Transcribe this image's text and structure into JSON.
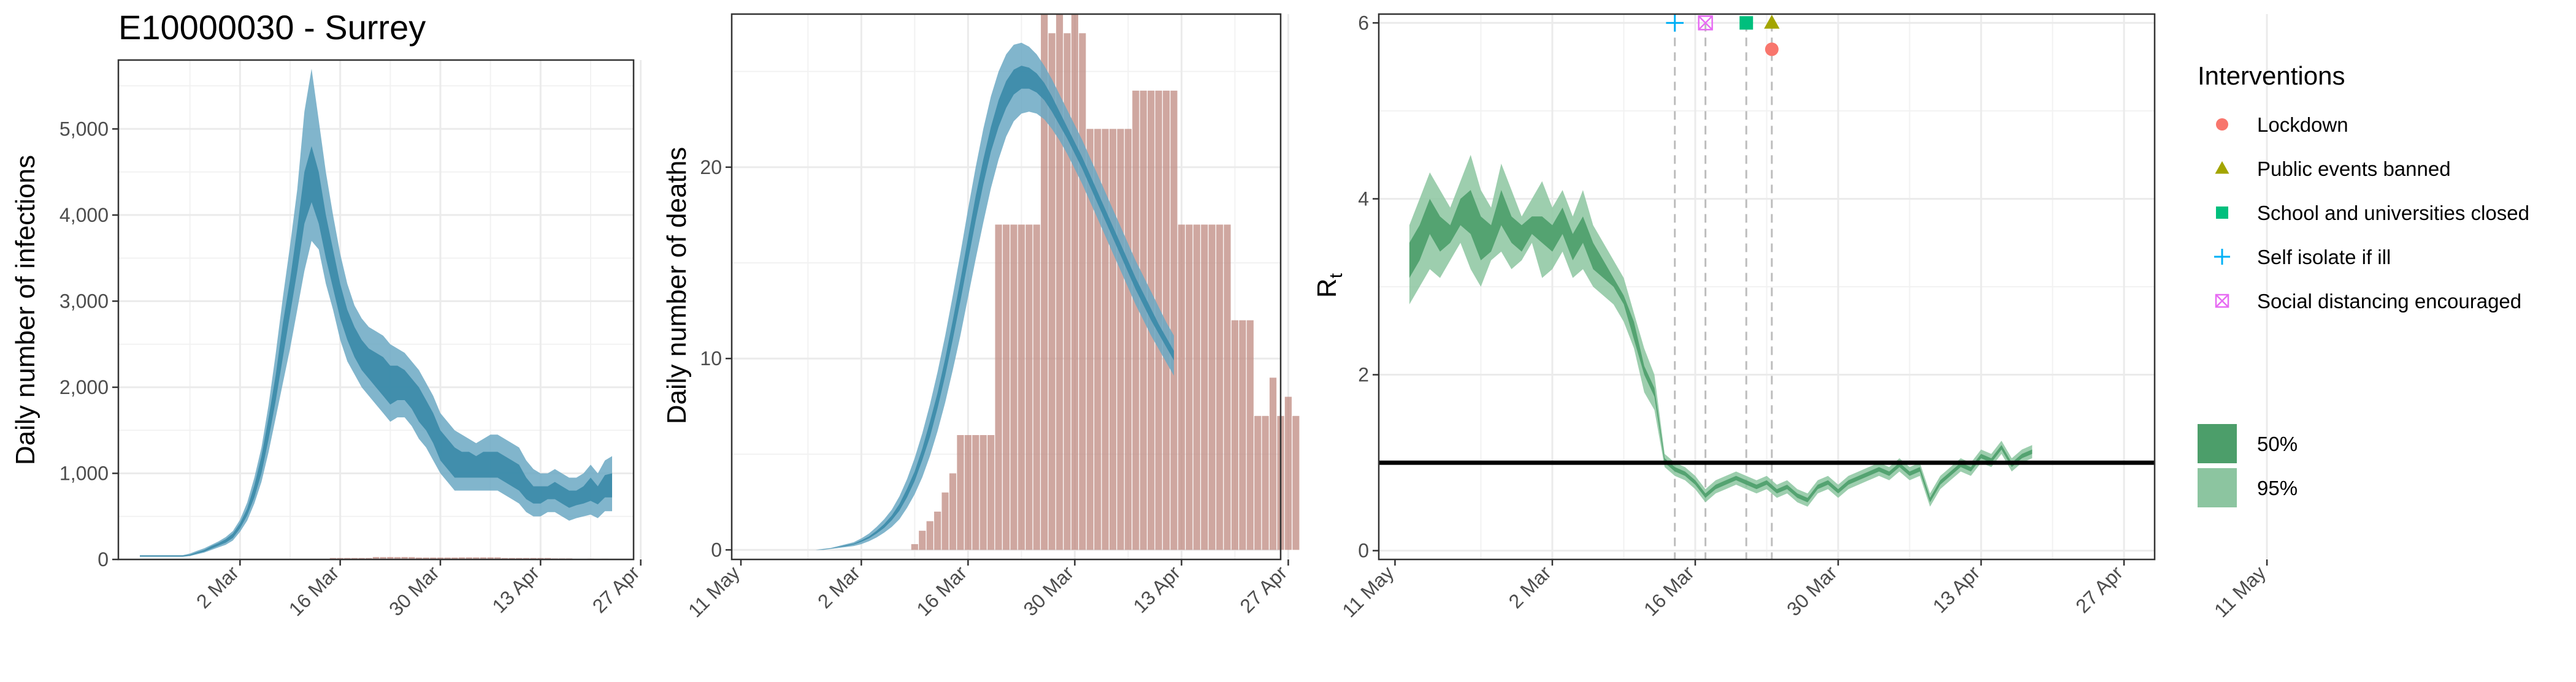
{
  "colors": {
    "infections_band_95": "#6BA8C3",
    "infections_band_50": "#3A89A8",
    "deaths_bar": "#BF8A80",
    "rt_band_95": "#8CC5A0",
    "rt_band_50": "#4C9E6A",
    "lockdown": "#F8766D",
    "public_events_banned": "#A3A500",
    "schools_closed": "#00BF7D",
    "self_isolate": "#00B0F6",
    "social_distancing": "#E76BF3"
  },
  "chart_data": [
    {
      "type": "area",
      "title": "E10000030 - Surrey",
      "xlabel": "",
      "ylabel": "Daily number of infections",
      "x_start": "2020-02-17",
      "x_ticks": [
        "2 Mar",
        "16 Mar",
        "30 Mar",
        "13 Apr",
        "27 Apr",
        "11 May"
      ],
      "y_ticks": [
        "0",
        "1,000",
        "2,000",
        "3,000",
        "4,000",
        "5,000"
      ],
      "ylim": [
        0,
        5800
      ],
      "grid": true,
      "series": [
        {
          "kind": "band",
          "level": "95%",
          "lower": [
            30,
            30,
            30,
            30,
            30,
            30,
            30,
            40,
            60,
            80,
            110,
            140,
            170,
            220,
            320,
            450,
            650,
            900,
            1250,
            1650,
            2050,
            2450,
            2900,
            3350,
            3700,
            3600,
            3200,
            2900,
            2550,
            2300,
            2150,
            2000,
            1900,
            1800,
            1700,
            1600,
            1650,
            1650,
            1550,
            1400,
            1300,
            1150,
            1000,
            900,
            800,
            800,
            800,
            800,
            800,
            800,
            800,
            750,
            700,
            650,
            550,
            500,
            500,
            550,
            550,
            500,
            450,
            480,
            500,
            520,
            480,
            560,
            560
          ],
          "upper": [
            50,
            50,
            50,
            50,
            50,
            50,
            50,
            70,
            100,
            130,
            170,
            210,
            260,
            330,
            460,
            660,
            950,
            1300,
            1800,
            2400,
            3050,
            3650,
            4300,
            5200,
            5700,
            5100,
            4500,
            4000,
            3550,
            3200,
            2950,
            2800,
            2700,
            2650,
            2600,
            2500,
            2450,
            2400,
            2300,
            2200,
            2050,
            1900,
            1700,
            1600,
            1500,
            1450,
            1400,
            1350,
            1400,
            1450,
            1450,
            1400,
            1350,
            1300,
            1150,
            1050,
            1000,
            1000,
            1050,
            1000,
            950,
            950,
            1000,
            1100,
            1000,
            1150,
            1200
          ]
        },
        {
          "kind": "band",
          "level": "50%",
          "lower": [
            35,
            35,
            35,
            35,
            35,
            35,
            35,
            45,
            70,
            90,
            125,
            160,
            195,
            250,
            360,
            510,
            720,
            1000,
            1400,
            1850,
            2350,
            2850,
            3350,
            3900,
            4150,
            3900,
            3500,
            3150,
            2800,
            2550,
            2350,
            2200,
            2100,
            2000,
            1900,
            1800,
            1850,
            1850,
            1750,
            1600,
            1500,
            1350,
            1150,
            1050,
            950,
            950,
            950,
            950,
            950,
            950,
            950,
            900,
            850,
            800,
            700,
            650,
            650,
            700,
            700,
            650,
            600,
            630,
            650,
            680,
            640,
            720,
            720
          ],
          "upper": [
            45,
            45,
            45,
            45,
            45,
            45,
            45,
            55,
            85,
            110,
            155,
            190,
            235,
            300,
            420,
            590,
            860,
            1200,
            1650,
            2150,
            2750,
            3250,
            3850,
            4500,
            4800,
            4500,
            4000,
            3600,
            3200,
            2900,
            2700,
            2550,
            2450,
            2400,
            2350,
            2250,
            2250,
            2200,
            2100,
            2000,
            1850,
            1700,
            1500,
            1400,
            1300,
            1250,
            1250,
            1200,
            1250,
            1250,
            1250,
            1200,
            1150,
            1100,
            950,
            850,
            850,
            850,
            900,
            850,
            800,
            800,
            850,
            950,
            850,
            980,
            1000
          ]
        },
        {
          "kind": "bars",
          "name": "reported deaths",
          "values": [
            0,
            0,
            0,
            0,
            0,
            0,
            0,
            0,
            0,
            0,
            0,
            0,
            0,
            0,
            0,
            0,
            0,
            0,
            0,
            0,
            0,
            0,
            6,
            6,
            6,
            6,
            6,
            17,
            17,
            17,
            17,
            17,
            17,
            28,
            27,
            28,
            27,
            28,
            27,
            22,
            22,
            22,
            22,
            22,
            22,
            24,
            24,
            24,
            24,
            24,
            24,
            17,
            17,
            17,
            17,
            17,
            17,
            17,
            12,
            12,
            12,
            7,
            7,
            9,
            7,
            8,
            7
          ]
        }
      ]
    },
    {
      "type": "area",
      "title": "",
      "xlabel": "",
      "ylabel": "Daily number of deaths",
      "x_start": "2020-02-17",
      "x_ticks": [
        "2 Mar",
        "16 Mar",
        "30 Mar",
        "13 Apr",
        "27 Apr",
        "11 May"
      ],
      "y_ticks": [
        "0",
        "10",
        "20"
      ],
      "ylim": [
        -0.5,
        28
      ],
      "grid": true,
      "series": [
        {
          "kind": "bars",
          "name": "reported deaths",
          "values": [
            0,
            0,
            0,
            0,
            0,
            0,
            0,
            0,
            0,
            0,
            0,
            0,
            0,
            0,
            0,
            0,
            0,
            0,
            0,
            0,
            0,
            0.3,
            1,
            1.5,
            2,
            3,
            4,
            6,
            6,
            6,
            6,
            6,
            17,
            17,
            17,
            17,
            17,
            17,
            28,
            27,
            28,
            27,
            28,
            27,
            22,
            22,
            22,
            22,
            22,
            22,
            24,
            24,
            24,
            24,
            24,
            24,
            17,
            17,
            17,
            17,
            17,
            17,
            17,
            12,
            12,
            12,
            7,
            7,
            9,
            7,
            8,
            7
          ]
        },
        {
          "kind": "band",
          "level": "95%",
          "lower": [
            0,
            0,
            0,
            0,
            0,
            0,
            0,
            0,
            0,
            0,
            0.05,
            0.1,
            0.15,
            0.2,
            0.3,
            0.45,
            0.65,
            0.9,
            1.2,
            1.6,
            2.2,
            2.9,
            3.8,
            4.9,
            6.2,
            7.7,
            9.4,
            11.2,
            13.2,
            15.2,
            17.1,
            18.9,
            20.4,
            21.6,
            22.4,
            22.8,
            22.9,
            22.8,
            22.5,
            22.0,
            21.4,
            20.7,
            19.9,
            19.1,
            18.2,
            17.3,
            16.4,
            15.5,
            14.6,
            13.7,
            12.8,
            12.0,
            11.2,
            10.5,
            9.8,
            9.1
          ],
          "upper": [
            0,
            0,
            0,
            0,
            0,
            0,
            0,
            0,
            0,
            0.05,
            0.1,
            0.2,
            0.3,
            0.4,
            0.6,
            0.85,
            1.2,
            1.6,
            2.1,
            2.8,
            3.7,
            4.8,
            6.1,
            7.6,
            9.3,
            11.2,
            13.3,
            15.5,
            17.8,
            20.0,
            22.0,
            23.7,
            25.0,
            25.9,
            26.4,
            26.5,
            26.3,
            25.9,
            25.3,
            24.6,
            23.8,
            23.0,
            22.2,
            21.4,
            20.5,
            19.6,
            18.7,
            17.8,
            16.9,
            16.0,
            15.1,
            14.3,
            13.5,
            12.7,
            11.9,
            11.2
          ]
        },
        {
          "kind": "band",
          "level": "50%",
          "lower": [
            0,
            0,
            0,
            0,
            0,
            0,
            0,
            0,
            0,
            0.02,
            0.07,
            0.14,
            0.2,
            0.28,
            0.42,
            0.6,
            0.85,
            1.15,
            1.55,
            2.05,
            2.75,
            3.6,
            4.7,
            5.9,
            7.4,
            9.1,
            11.0,
            13.0,
            15.1,
            17.2,
            19.1,
            20.8,
            22.1,
            23.1,
            23.8,
            24.1,
            24.1,
            23.9,
            23.5,
            22.9,
            22.2,
            21.5,
            20.7,
            19.9,
            19.0,
            18.1,
            17.2,
            16.3,
            15.4,
            14.5,
            13.6,
            12.8,
            12.0,
            11.3,
            10.6,
            9.9
          ],
          "upper": [
            0,
            0,
            0,
            0,
            0,
            0,
            0,
            0,
            0,
            0.03,
            0.08,
            0.16,
            0.25,
            0.33,
            0.5,
            0.7,
            1.0,
            1.35,
            1.8,
            2.4,
            3.2,
            4.1,
            5.3,
            6.7,
            8.2,
            10.0,
            12.0,
            14.1,
            16.3,
            18.5,
            20.4,
            22.1,
            23.5,
            24.5,
            25.1,
            25.3,
            25.2,
            24.9,
            24.4,
            23.7,
            22.9,
            22.1,
            21.3,
            20.5,
            19.6,
            18.7,
            17.8,
            16.9,
            16.0,
            15.1,
            14.2,
            13.4,
            12.6,
            11.8,
            11.1,
            10.4
          ]
        }
      ]
    },
    {
      "type": "area",
      "title": "",
      "xlabel": "",
      "ylabel": "R",
      "ylabel_subscript": "t",
      "x_start": "2020-02-17",
      "x_ticks": [
        "2 Mar",
        "16 Mar",
        "30 Mar",
        "13 Apr",
        "27 Apr",
        "11 May"
      ],
      "y_ticks": [
        "0",
        "2",
        "4",
        "6"
      ],
      "ylim": [
        -0.1,
        6.1
      ],
      "grid": true,
      "reference_line": 1,
      "interventions": [
        {
          "name": "Self isolate if ill",
          "shape": "plus",
          "day": 26,
          "y": 6.0
        },
        {
          "name": "Social distancing encouraged",
          "shape": "boxx",
          "day": 29,
          "y": 6.0
        },
        {
          "name": "School and universities closed",
          "shape": "square",
          "day": 33,
          "y": 6.0
        },
        {
          "name": "Public events banned",
          "shape": "triangle",
          "day": 35.5,
          "y": 6.0
        },
        {
          "name": "Lockdown",
          "shape": "circle",
          "day": 35.5,
          "y": 5.7
        }
      ],
      "series": [
        {
          "kind": "band",
          "level": "95%",
          "lower": [
            2.8,
            3.0,
            3.2,
            3.1,
            3.3,
            3.5,
            3.2,
            3.0,
            3.3,
            3.4,
            3.2,
            3.3,
            3.5,
            3.1,
            3.2,
            3.4,
            3.1,
            3.2,
            3.0,
            2.9,
            2.8,
            2.6,
            2.3,
            1.8,
            1.6,
            0.95,
            0.85,
            0.8,
            0.7,
            0.55,
            0.65,
            0.7,
            0.75,
            0.7,
            0.65,
            0.7,
            0.6,
            0.65,
            0.55,
            0.5,
            0.65,
            0.7,
            0.6,
            0.7,
            0.75,
            0.8,
            0.85,
            0.8,
            0.9,
            0.8,
            0.85,
            0.5,
            0.7,
            0.8,
            0.9,
            0.85,
            1.0,
            0.95,
            1.1,
            0.9,
            1.0,
            1.05
          ],
          "upper": [
            3.7,
            4.0,
            4.3,
            4.1,
            3.9,
            4.2,
            4.5,
            4.1,
            3.9,
            4.4,
            4.1,
            3.8,
            4.0,
            4.2,
            3.9,
            4.1,
            3.8,
            4.1,
            3.7,
            3.5,
            3.3,
            3.1,
            2.7,
            2.3,
            2.0,
            1.1,
            1.0,
            0.95,
            0.85,
            0.7,
            0.8,
            0.85,
            0.9,
            0.85,
            0.8,
            0.85,
            0.75,
            0.8,
            0.7,
            0.65,
            0.8,
            0.85,
            0.75,
            0.85,
            0.9,
            0.95,
            1.0,
            0.95,
            1.05,
            0.95,
            1.0,
            0.65,
            0.85,
            0.95,
            1.05,
            1.0,
            1.15,
            1.1,
            1.25,
            1.05,
            1.15,
            1.2
          ]
        },
        {
          "kind": "band",
          "level": "50%",
          "lower": [
            3.1,
            3.3,
            3.6,
            3.4,
            3.5,
            3.7,
            3.6,
            3.3,
            3.4,
            3.7,
            3.5,
            3.4,
            3.6,
            3.5,
            3.4,
            3.6,
            3.3,
            3.5,
            3.2,
            3.1,
            3.0,
            2.8,
            2.4,
            2.0,
            1.75,
            1.0,
            0.9,
            0.85,
            0.75,
            0.6,
            0.7,
            0.75,
            0.8,
            0.75,
            0.7,
            0.75,
            0.65,
            0.7,
            0.6,
            0.55,
            0.7,
            0.75,
            0.65,
            0.75,
            0.8,
            0.85,
            0.9,
            0.85,
            0.95,
            0.85,
            0.9,
            0.55,
            0.75,
            0.85,
            0.95,
            0.9,
            1.05,
            1.0,
            1.15,
            0.95,
            1.05,
            1.1
          ],
          "upper": [
            3.5,
            3.7,
            4.0,
            3.8,
            3.7,
            4.0,
            4.1,
            3.8,
            3.7,
            4.1,
            3.8,
            3.7,
            3.8,
            3.8,
            3.7,
            3.9,
            3.6,
            3.8,
            3.5,
            3.3,
            3.1,
            2.9,
            2.6,
            2.1,
            1.85,
            1.05,
            0.95,
            0.9,
            0.8,
            0.65,
            0.75,
            0.8,
            0.85,
            0.8,
            0.75,
            0.8,
            0.7,
            0.75,
            0.65,
            0.6,
            0.75,
            0.8,
            0.7,
            0.8,
            0.85,
            0.9,
            0.95,
            0.9,
            1.0,
            0.9,
            0.95,
            0.6,
            0.8,
            0.9,
            1.0,
            0.95,
            1.1,
            1.05,
            1.2,
            1.0,
            1.1,
            1.15
          ]
        }
      ]
    }
  ],
  "legend": {
    "interventions_title": "Interventions",
    "interventions": [
      {
        "label": "Lockdown",
        "shape": "circle"
      },
      {
        "label": "Public events banned",
        "shape": "triangle"
      },
      {
        "label": "School and universities closed",
        "shape": "square"
      },
      {
        "label": "Self isolate if ill",
        "shape": "plus"
      },
      {
        "label": "Social distancing encouraged",
        "shape": "boxx"
      }
    ],
    "bands": [
      {
        "label": "50%"
      },
      {
        "label": "95%"
      }
    ]
  }
}
